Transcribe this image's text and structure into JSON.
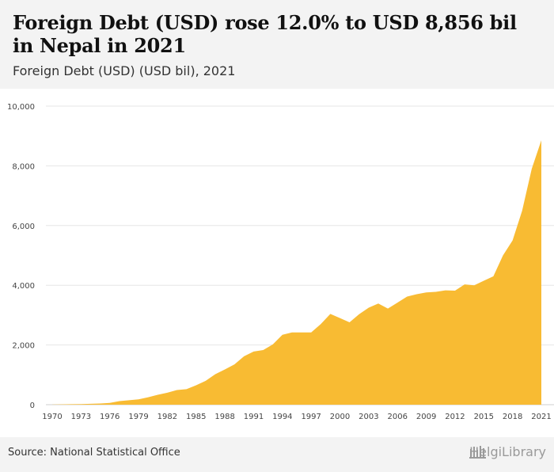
{
  "title": "Foreign Debt (USD) rose 12.0% to USD 8,856 bil in Nepal in 2021",
  "subtitle": "Foreign Debt (USD) (USD bil), 2021",
  "source": "Source: National Statistical Office",
  "brand": "HelgiLibrary",
  "colors": {
    "area": "#f8bb33",
    "grid": "#e6e6e6",
    "axis_text": "#444444"
  },
  "chart_data": {
    "type": "area",
    "title": "Foreign Debt (USD) rose 12.0% to USD 8,856 bil in Nepal in 2021",
    "subtitle": "Foreign Debt (USD) (USD bil), 2021",
    "xlabel": "",
    "ylabel": "",
    "ylim": [
      0,
      10000
    ],
    "yticks": [
      0,
      2000,
      4000,
      6000,
      8000,
      10000
    ],
    "ytick_labels": [
      "0",
      "2,000",
      "4,000",
      "6,000",
      "8,000",
      "10,000"
    ],
    "xticks": [
      1970,
      1973,
      1976,
      1979,
      1982,
      1985,
      1988,
      1991,
      1994,
      1997,
      2000,
      2003,
      2006,
      2009,
      2012,
      2015,
      2018,
      2021
    ],
    "grid": true,
    "x": [
      1970,
      1971,
      1972,
      1973,
      1974,
      1975,
      1976,
      1977,
      1978,
      1979,
      1980,
      1981,
      1982,
      1983,
      1984,
      1985,
      1986,
      1987,
      1988,
      1989,
      1990,
      1991,
      1992,
      1993,
      1994,
      1995,
      1996,
      1997,
      1998,
      1999,
      2000,
      2001,
      2002,
      2003,
      2004,
      2005,
      2006,
      2007,
      2008,
      2009,
      2010,
      2011,
      2012,
      2013,
      2014,
      2015,
      2016,
      2017,
      2018,
      2019,
      2020,
      2021
    ],
    "values": [
      3,
      10,
      15,
      20,
      30,
      40,
      60,
      120,
      150,
      180,
      250,
      330,
      400,
      490,
      520,
      650,
      800,
      1020,
      1180,
      1350,
      1620,
      1780,
      1830,
      2020,
      2340,
      2420,
      2420,
      2420,
      2700,
      3040,
      2900,
      2760,
      3030,
      3250,
      3390,
      3220,
      3420,
      3620,
      3700,
      3760,
      3780,
      3830,
      3820,
      4030,
      4000,
      4150,
      4300,
      5000,
      5500,
      6500,
      7900,
      8856
    ]
  }
}
